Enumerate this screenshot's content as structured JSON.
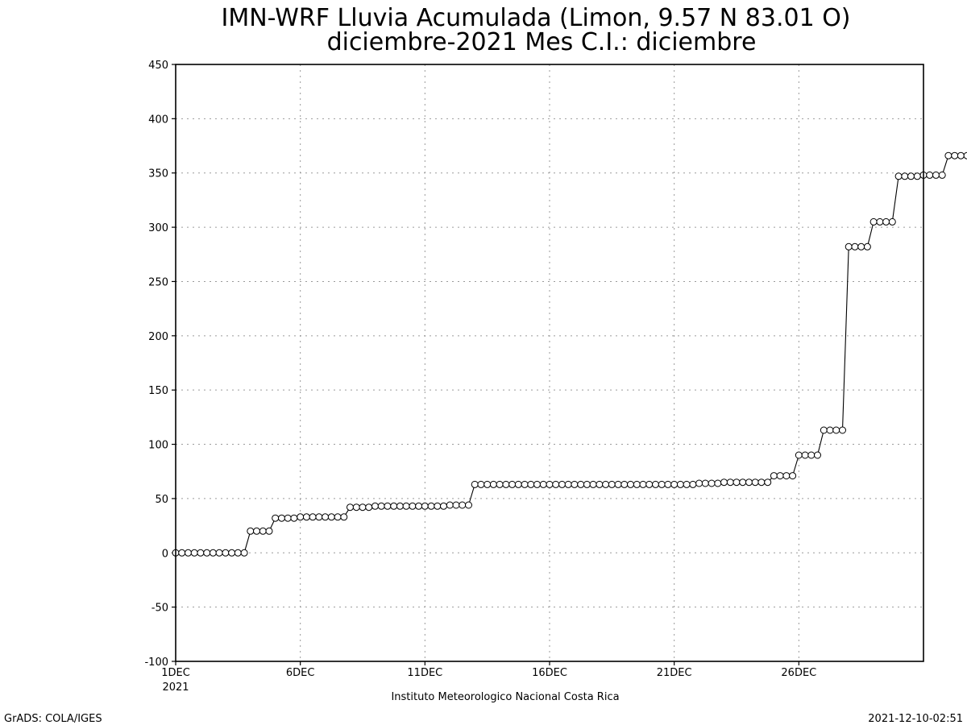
{
  "chart_data": {
    "type": "line",
    "title": "IMN-WRF  Lluvia Acumulada (Limon, 9.57  N 83.01  O)",
    "subtitle": "diciembre-2021 Mes C.I.: diciembre",
    "ylim": [
      -100,
      450
    ],
    "y_ticks": [
      "450",
      "400",
      "350",
      "300",
      "250",
      "200",
      "150",
      "100",
      "50",
      "0",
      "-50",
      "-100"
    ],
    "x_ticks": [
      "1DEC",
      "6DEC",
      "11DEC",
      "16DEC",
      "21DEC",
      "26DEC"
    ],
    "x_tick_sub": "2021",
    "xlim_days": [
      1,
      31
    ],
    "grid": true,
    "series": [
      {
        "marker": "circle",
        "step_days": 0.25,
        "start_day": 1,
        "values": [
          0,
          0,
          0,
          0,
          0,
          0,
          0,
          0,
          0,
          0,
          0,
          0,
          20,
          20,
          20,
          20,
          32,
          32,
          32,
          32,
          33,
          33,
          33,
          33,
          33,
          33,
          33,
          33,
          42,
          42,
          42,
          42,
          43,
          43,
          43,
          43,
          43,
          43,
          43,
          43,
          43,
          43,
          43,
          43,
          44,
          44,
          44,
          44,
          63,
          63,
          63,
          63,
          63,
          63,
          63,
          63,
          63,
          63,
          63,
          63,
          63,
          63,
          63,
          63,
          63,
          63,
          63,
          63,
          63,
          63,
          63,
          63,
          63,
          63,
          63,
          63,
          63,
          63,
          63,
          63,
          63,
          63,
          63,
          63,
          64,
          64,
          64,
          64,
          65,
          65,
          65,
          65,
          65,
          65,
          65,
          65,
          71,
          71,
          71,
          71,
          90,
          90,
          90,
          90,
          113,
          113,
          113,
          113,
          282,
          282,
          282,
          282,
          305,
          305,
          305,
          305,
          347,
          347,
          347,
          347,
          348,
          348,
          348,
          348,
          366,
          366,
          366,
          366
        ]
      }
    ]
  },
  "footer": {
    "institution": "Instituto Meteorologico Nacional Costa Rica",
    "left": "GrADS: COLA/IGES",
    "right": "2021-12-10-02:51"
  }
}
